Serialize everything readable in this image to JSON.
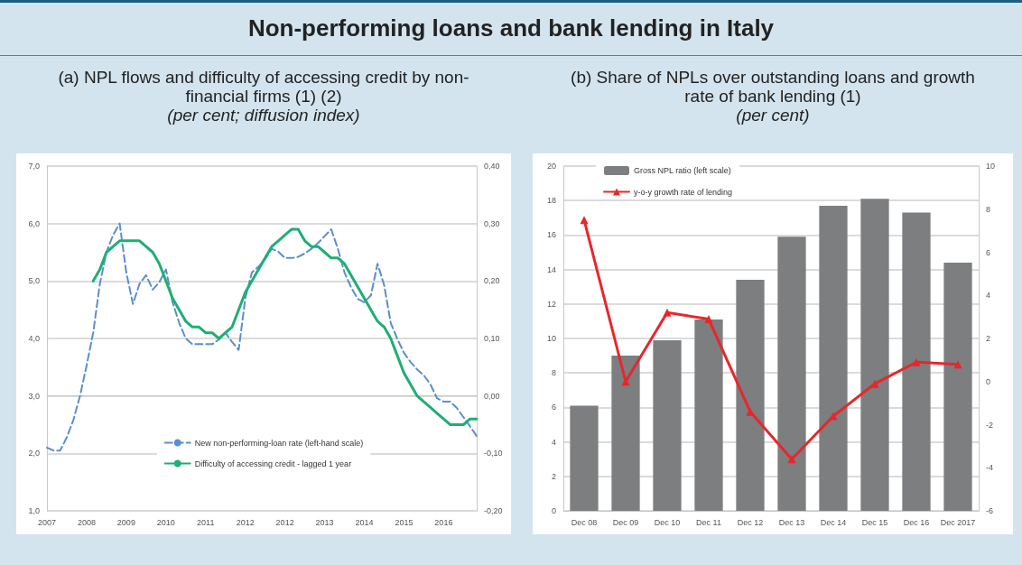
{
  "chart_data": [
    {
      "type": "other",
      "title": "Non-performing loans and bank lending in Italy"
    },
    {
      "type": "line",
      "title": "(a) NPL flows and difficulty of accessing credit by non-financial firms (1) (2)",
      "subtitle": "(per cent; diffusion index)",
      "categories": [
        "2007",
        null,
        null,
        null,
        null,
        null,
        "2008",
        null,
        null,
        null,
        null,
        null,
        "2009",
        null,
        null,
        null,
        null,
        null,
        "2010",
        null,
        null,
        null,
        null,
        null,
        "2011",
        null,
        null,
        null,
        null,
        null,
        "2012",
        null,
        null,
        null,
        null,
        null,
        "2012",
        null,
        null,
        null,
        null,
        null,
        "2013",
        null,
        null,
        null,
        null,
        null,
        "2014",
        null,
        null,
        null,
        null,
        null,
        "2015",
        null,
        null,
        null,
        null,
        null,
        "2016",
        null,
        null,
        null,
        null,
        null
      ],
      "ylim": [
        1,
        7
      ],
      "yticks": [
        {
          "value": 1,
          "label": "1,0"
        },
        {
          "value": 2,
          "label": "2,0"
        },
        {
          "value": 3,
          "label": "3,0"
        },
        {
          "value": 4,
          "label": "4,0"
        },
        {
          "value": 5,
          "label": "5,0"
        },
        {
          "value": 6,
          "label": "6,0"
        },
        {
          "value": 7,
          "label": "7,0"
        }
      ],
      "y2lim": [
        -0.2,
        0.4
      ],
      "y2ticks": [
        {
          "value": -0.2,
          "label": "-0,20"
        },
        {
          "value": -0.1,
          "label": "-0,10"
        },
        {
          "value": 0,
          "label": "0,00"
        },
        {
          "value": 0.1,
          "label": "0,10"
        },
        {
          "value": 0.2,
          "label": "0,20"
        },
        {
          "value": 0.3,
          "label": "0,30"
        },
        {
          "value": 0.4,
          "label": "0,40"
        }
      ],
      "grid": "y",
      "legend": "bottom",
      "marker": "none",
      "series": [
        {
          "name": "New non-performing-loan rate (left-hand scale)",
          "color": "#5b8fc9",
          "line_style": "dashed",
          "values": [
            2.1,
            2.05,
            2.05,
            2.28,
            2.58,
            3.0,
            3.53,
            4.1,
            4.95,
            5.5,
            5.8,
            6.0,
            5.15,
            4.6,
            4.95,
            5.1,
            4.85,
            4.98,
            5.2,
            4.63,
            4.27,
            4.0,
            3.9,
            3.9,
            3.9,
            3.9,
            3.98,
            4.1,
            3.94,
            3.8,
            4.7,
            5.15,
            5.25,
            5.38,
            5.56,
            5.51,
            5.4,
            5.4,
            5.42,
            5.48,
            5.56,
            5.66,
            5.78,
            5.9,
            5.56,
            5.15,
            4.89,
            4.69,
            4.63,
            4.75,
            5.3,
            4.93,
            4.27,
            3.99,
            3.75,
            3.59,
            3.46,
            3.36,
            3.2,
            2.96,
            2.9,
            2.9,
            2.79,
            2.63,
            2.47,
            2.3
          ]
        },
        {
          "name": "Difficulty of accessing credit - lagged 1 year",
          "color": "#1fae74",
          "line_style": "solid",
          "axis": "y2",
          "values": [
            null,
            null,
            null,
            null,
            null,
            null,
            null,
            0.2,
            0.22,
            0.25,
            0.26,
            0.27,
            0.27,
            0.27,
            0.27,
            0.26,
            0.25,
            0.23,
            0.2,
            0.17,
            0.15,
            0.13,
            0.12,
            0.12,
            0.11,
            0.11,
            0.1,
            0.11,
            0.12,
            0.15,
            0.18,
            0.2,
            0.22,
            0.24,
            0.26,
            0.27,
            0.28,
            0.29,
            0.29,
            0.27,
            0.26,
            0.26,
            0.25,
            0.24,
            0.24,
            0.23,
            0.21,
            0.19,
            0.17,
            0.15,
            0.13,
            0.12,
            0.1,
            0.07,
            0.04,
            0.02,
            0.0,
            -0.01,
            -0.02,
            -0.03,
            -0.04,
            -0.05,
            -0.05,
            -0.05,
            -0.04,
            -0.04
          ]
        }
      ]
    },
    {
      "type": "bar",
      "title": "(b) Share of NPLs over outstanding loans and growth rate of bank lending (1)",
      "subtitle": "(per cent)",
      "categories": [
        "Dec 08",
        "Dec 09",
        "Dec 10",
        "Dec 11",
        "Dec 12",
        "Dec 13",
        "Dec 14",
        "Dec 15",
        "Dec 16",
        "Dec 2017"
      ],
      "ylim": [
        0,
        20
      ],
      "yticks": [
        0,
        2,
        4,
        6,
        8,
        10,
        12,
        14,
        16,
        18,
        20
      ],
      "y2lim": [
        -6,
        10
      ],
      "y2ticks": [
        -6,
        -4,
        -2,
        0,
        2,
        4,
        6,
        8,
        10
      ],
      "grid": "y",
      "legend": "top left",
      "series": [
        {
          "name": "Gross NPL ratio (left scale)",
          "color": "#7c7e80",
          "values": [
            6.1,
            9.0,
            9.9,
            11.1,
            13.4,
            15.9,
            17.7,
            18.1,
            17.3,
            14.4
          ]
        },
        {
          "name": "y-o-y growth rate of lending",
          "type": "line",
          "color": "#e8262b",
          "marker": "triangle",
          "line_style": "solid",
          "axis": "y2",
          "values": [
            7.5,
            0.0,
            3.2,
            2.9,
            -1.4,
            -3.6,
            -1.6,
            -0.1,
            0.9,
            0.8
          ]
        }
      ]
    }
  ]
}
